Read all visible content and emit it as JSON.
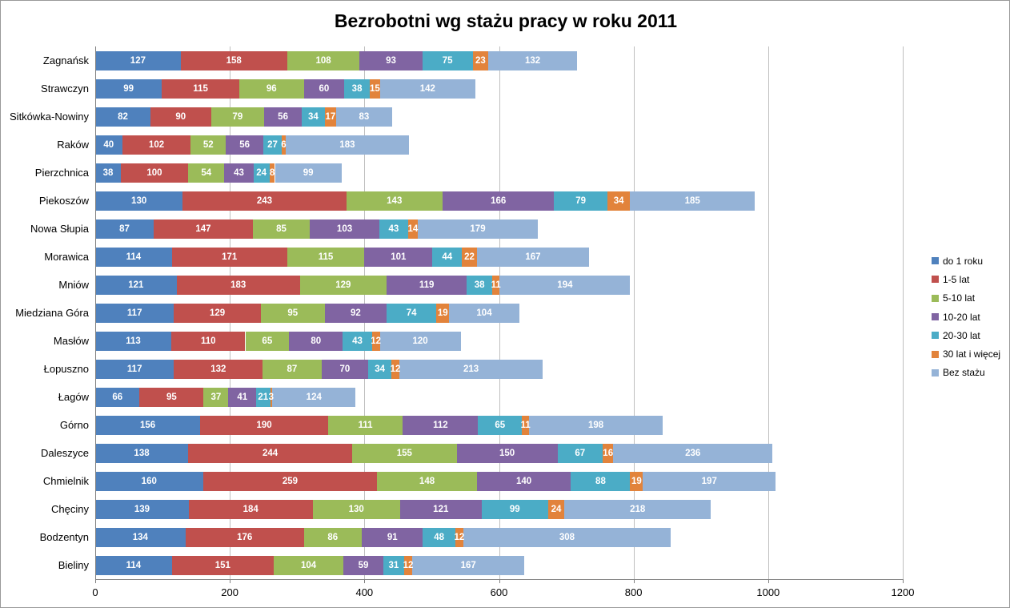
{
  "title": "Bezrobotni wg stażu pracy w roku 2011",
  "chart_data": {
    "type": "bar",
    "orientation": "horizontal",
    "stacked": true,
    "title": "Bezrobotni wg stażu pracy w roku 2011",
    "categories": [
      "Zagnańsk",
      "Strawczyn",
      "Sitkówka-Nowiny",
      "Raków",
      "Pierzchnica",
      "Piekoszów",
      "Nowa Słupia",
      "Morawica",
      "Mniów",
      "Miedziana Góra",
      "Masłów",
      "Łopuszno",
      "Łagów",
      "Górno",
      "Daleszyce",
      "Chmielnik",
      "Chęciny",
      "Bodzentyn",
      "Bieliny"
    ],
    "series": [
      {
        "name": "do 1 roku",
        "color": "#4F81BD",
        "values": [
          127,
          99,
          82,
          40,
          38,
          130,
          87,
          114,
          121,
          117,
          113,
          117,
          66,
          156,
          138,
          160,
          139,
          134,
          114
        ]
      },
      {
        "name": "1-5 lat",
        "color": "#C0504D",
        "values": [
          158,
          115,
          90,
          102,
          100,
          243,
          147,
          171,
          183,
          129,
          110,
          132,
          95,
          190,
          244,
          259,
          184,
          176,
          151
        ]
      },
      {
        "name": "5-10 lat",
        "color": "#9BBB59",
        "values": [
          108,
          96,
          79,
          52,
          54,
          143,
          85,
          115,
          129,
          95,
          65,
          87,
          37,
          111,
          155,
          148,
          130,
          86,
          104
        ]
      },
      {
        "name": "10-20 lat",
        "color": "#8064A2",
        "values": [
          93,
          60,
          56,
          56,
          43,
          166,
          103,
          101,
          119,
          92,
          80,
          70,
          41,
          112,
          150,
          140,
          121,
          91,
          59
        ]
      },
      {
        "name": "20-30 lat",
        "color": "#4BACC6",
        "values": [
          75,
          38,
          34,
          27,
          24,
          79,
          43,
          44,
          38,
          74,
          43,
          34,
          21,
          65,
          67,
          88,
          99,
          48,
          31
        ]
      },
      {
        "name": "30 lat i więcej",
        "color": "#E2833B",
        "values": [
          23,
          15,
          17,
          6,
          8,
          34,
          14,
          22,
          11,
          19,
          12,
          12,
          3,
          11,
          16,
          19,
          24,
          12,
          12
        ]
      },
      {
        "name": "Bez stażu",
        "color": "#95B3D7",
        "values": [
          132,
          142,
          83,
          183,
          99,
          185,
          179,
          167,
          194,
          104,
          120,
          213,
          124,
          198,
          236,
          197,
          218,
          308,
          167
        ]
      }
    ],
    "xlim": [
      0,
      1200
    ],
    "x_ticks": [
      0,
      200,
      400,
      600,
      800,
      1000,
      1200
    ],
    "grid": true,
    "legend_position": "right",
    "data_labels": true,
    "data_label_color": "#FFFFFF",
    "gridline_color": "#BFBFBF",
    "axis_color": "#808080",
    "background_color": "#FFFFFF"
  }
}
